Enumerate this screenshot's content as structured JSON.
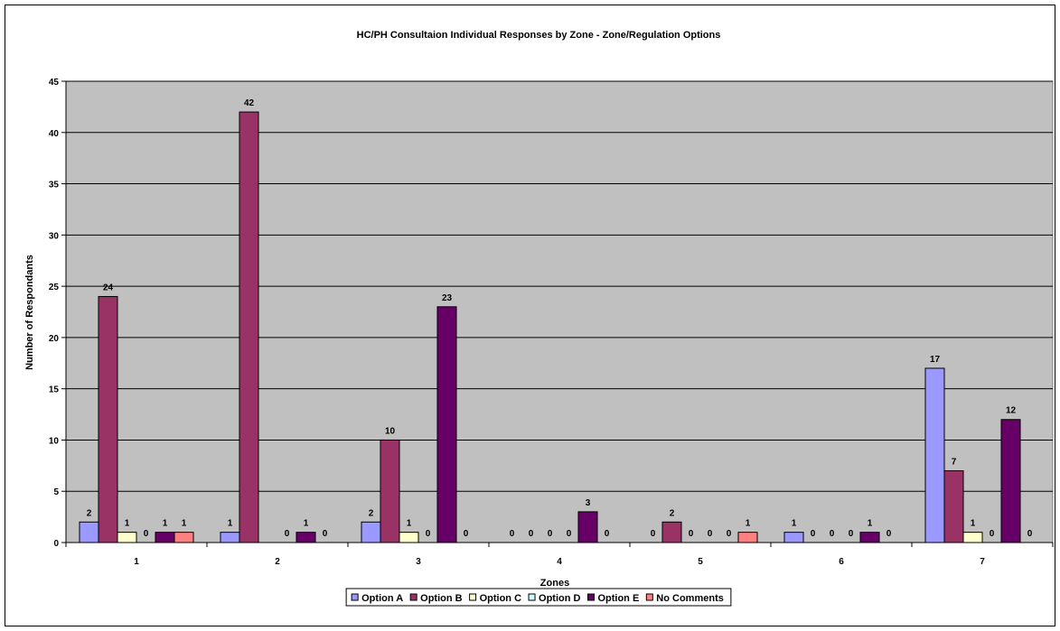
{
  "chart_data": {
    "type": "bar",
    "title": "HC/PH Consultaion Individual Responses by Zone - Zone/Regulation Options",
    "xlabel": "Zones",
    "ylabel": "Number of Respondants",
    "categories": [
      "1",
      "2",
      "3",
      "4",
      "5",
      "6",
      "7"
    ],
    "ylim": [
      0,
      45
    ],
    "yticks": [
      0,
      5,
      10,
      15,
      20,
      25,
      30,
      35,
      40,
      45
    ],
    "grid": true,
    "legend_position": "bottom",
    "plot_background": "#C0C0C0",
    "series": [
      {
        "name": "Option A",
        "color": "#9999FF",
        "values": [
          2,
          1,
          2,
          0,
          0,
          1,
          17
        ]
      },
      {
        "name": "Option B",
        "color": "#993366",
        "values": [
          24,
          42,
          10,
          0,
          2,
          0,
          7
        ]
      },
      {
        "name": "Option C",
        "color": "#FFFFCC",
        "values": [
          1,
          null,
          1,
          0,
          0,
          0,
          1
        ]
      },
      {
        "name": "Option D",
        "color": "#CCFFFF",
        "values": [
          0,
          0,
          0,
          0,
          0,
          0,
          0
        ]
      },
      {
        "name": "Option E",
        "color": "#660066",
        "values": [
          1,
          1,
          23,
          3,
          0,
          1,
          12
        ]
      },
      {
        "name": "No Comments",
        "color": "#FF8080",
        "values": [
          1,
          0,
          0,
          0,
          1,
          0,
          0
        ]
      }
    ]
  }
}
